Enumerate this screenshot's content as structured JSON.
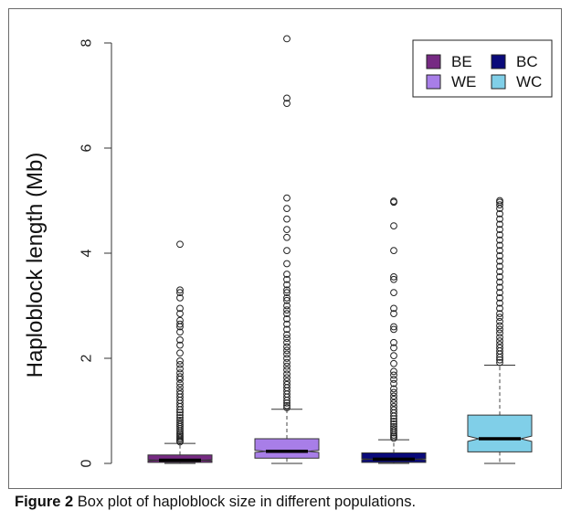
{
  "chart_data": {
    "type": "box",
    "ylabel": "Haploblock length (Mb)",
    "ylim": [
      0,
      8.2
    ],
    "yticks": [
      0,
      2,
      4,
      6,
      8
    ],
    "ytick_labels": [
      "0",
      "2",
      "4",
      "6",
      "8"
    ],
    "grid": false,
    "legend_position": "top-right",
    "legend": [
      {
        "label": "BE",
        "color": "#762a83"
      },
      {
        "label": "BC",
        "color": "#0a0a7a"
      },
      {
        "label": "WE",
        "color": "#a87ee8"
      },
      {
        "label": "WC",
        "color": "#80cfe8"
      }
    ],
    "series": [
      {
        "name": "BE",
        "color": "#762a83",
        "whisker_low": 0.0,
        "q1": 0.02,
        "median": 0.06,
        "q3": 0.16,
        "notch_low": 0.05,
        "notch_high": 0.07,
        "whisker_high": 0.38,
        "outliers": [
          4.17,
          3.3,
          3.25,
          3.15,
          2.95,
          2.85,
          2.72,
          2.65,
          2.6,
          2.5,
          2.35,
          2.25,
          2.1,
          1.95,
          1.88,
          1.8,
          1.72,
          1.65,
          1.6,
          1.52,
          1.45,
          1.38,
          1.32,
          1.26,
          1.2,
          1.14,
          1.08,
          1.02,
          0.97,
          0.92,
          0.87,
          0.82,
          0.78,
          0.74,
          0.7,
          0.66,
          0.62,
          0.58,
          0.55,
          0.52,
          0.49,
          0.46,
          0.43,
          0.41
        ]
      },
      {
        "name": "WE",
        "color": "#a87ee8",
        "whisker_low": 0.0,
        "q1": 0.1,
        "median": 0.23,
        "q3": 0.47,
        "notch_low": 0.21,
        "notch_high": 0.25,
        "whisker_high": 1.03,
        "outliers": [
          8.08,
          6.95,
          6.85,
          5.05,
          4.85,
          4.65,
          4.45,
          4.3,
          4.05,
          3.8,
          3.6,
          3.5,
          3.4,
          3.3,
          3.25,
          3.15,
          3.1,
          3.0,
          2.92,
          2.85,
          2.75,
          2.65,
          2.55,
          2.45,
          2.38,
          2.3,
          2.22,
          2.15,
          2.08,
          2.0,
          1.92,
          1.85,
          1.78,
          1.7,
          1.63,
          1.56,
          1.5,
          1.44,
          1.38,
          1.32,
          1.26,
          1.2,
          1.15,
          1.1,
          1.06
        ]
      },
      {
        "name": "BC",
        "color": "#0a0a7a",
        "whisker_low": 0.0,
        "q1": 0.02,
        "median": 0.08,
        "q3": 0.2,
        "notch_low": 0.07,
        "notch_high": 0.09,
        "whisker_high": 0.45,
        "outliers": [
          4.99,
          4.97,
          4.52,
          4.05,
          3.55,
          3.5,
          3.25,
          2.95,
          2.85,
          2.6,
          2.55,
          2.3,
          2.2,
          2.05,
          1.9,
          1.75,
          1.68,
          1.6,
          1.52,
          1.42,
          1.35,
          1.28,
          1.22,
          1.15,
          1.08,
          1.02,
          0.96,
          0.9,
          0.85,
          0.8,
          0.75,
          0.7,
          0.66,
          0.62,
          0.58,
          0.54,
          0.51,
          0.48
        ]
      },
      {
        "name": "WC",
        "color": "#80cfe8",
        "whisker_low": 0.0,
        "q1": 0.22,
        "median": 0.47,
        "q3": 0.92,
        "notch_low": 0.42,
        "notch_high": 0.52,
        "whisker_high": 1.87,
        "outliers": [
          5.0,
          4.97,
          4.92,
          4.85,
          4.75,
          4.65,
          4.55,
          4.45,
          4.35,
          4.25,
          4.15,
          4.05,
          3.95,
          3.85,
          3.75,
          3.65,
          3.55,
          3.45,
          3.35,
          3.25,
          3.15,
          3.05,
          2.95,
          2.85,
          2.78,
          2.7,
          2.62,
          2.55,
          2.48,
          2.4,
          2.33,
          2.26,
          2.2,
          2.14,
          2.08,
          2.02,
          1.97,
          1.92
        ]
      }
    ]
  },
  "caption": {
    "label": "Figure 2",
    "text": " Box plot of haploblock size in different populations."
  }
}
